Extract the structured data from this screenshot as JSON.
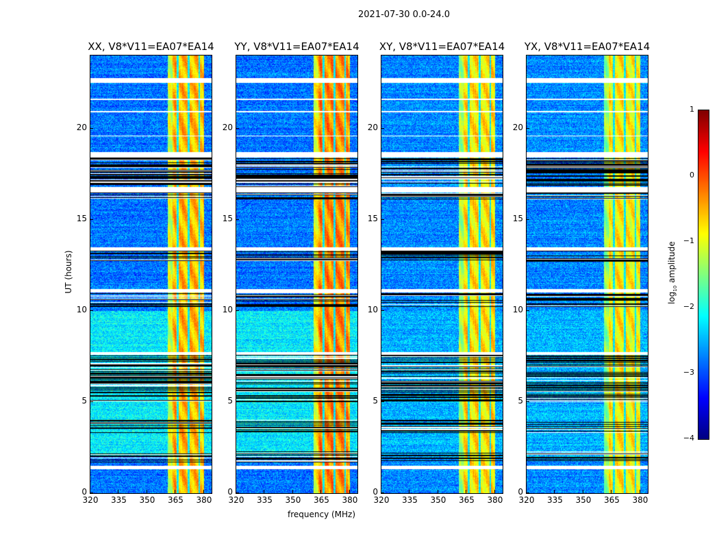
{
  "suptitle": "2021-07-30 0.0-24.0",
  "chart_data": {
    "type": "heatmap",
    "xlabel": "frequency (MHz)",
    "ylabel": "UT (hours)",
    "xlim": [
      320,
      384
    ],
    "ylim": [
      0,
      24
    ],
    "xticks": [
      "320",
      "335",
      "350",
      "365",
      "380"
    ],
    "xtick_values": [
      320,
      335,
      350,
      365,
      380
    ],
    "yticks": [
      "0",
      "5",
      "10",
      "15",
      "20"
    ],
    "ytick_values": [
      0,
      5,
      10,
      15,
      20
    ],
    "colorbar": {
      "label_prefix": "log",
      "label_sub": "10",
      "label_suffix": " amplitude",
      "range": [
        -4,
        1
      ],
      "ticks": [
        "1",
        "0",
        "−1",
        "−2",
        "−3",
        "−4"
      ],
      "tick_values": [
        1,
        0,
        -1,
        -2,
        -3,
        -4
      ],
      "colormap": "jet"
    },
    "rfi_band_mhz": [
      361,
      380
    ],
    "band_gaps_mhz": [
      366,
      372,
      377.5
    ],
    "flagged_blocks_hours": [
      [
        22.5,
        22.75
      ],
      [
        21.55,
        21.65
      ],
      [
        20.9,
        20.95
      ],
      [
        19.55,
        19.62
      ],
      [
        18.4,
        18.72
      ],
      [
        16.5,
        16.8
      ],
      [
        13.3,
        13.5
      ],
      [
        11.0,
        11.2
      ],
      [
        7.6,
        7.75
      ],
      [
        1.3,
        1.5
      ]
    ],
    "striped_ranges_hours": [
      [
        16.1,
        18.4
      ],
      [
        12.7,
        13.3
      ],
      [
        10.2,
        11.0
      ],
      [
        5.0,
        7.6
      ],
      [
        3.3,
        4.0
      ],
      [
        1.7,
        2.3
      ]
    ],
    "panels": [
      {
        "title": "XX, V8*V11=EA07*EA14",
        "band_level": -0.7,
        "background_level": -2.8,
        "quiet_background_level": -2.2
      },
      {
        "title": "YY, V8*V11=EA07*EA14",
        "band_level": -0.5,
        "background_level": -2.8,
        "quiet_background_level": -2.2
      },
      {
        "title": "XY, V8*V11=EA07*EA14",
        "band_level": -0.9,
        "background_level": -2.7,
        "quiet_background_level": -2.5
      },
      {
        "title": "YX, V8*V11=EA07*EA14",
        "band_level": -1.0,
        "background_level": -2.7,
        "quiet_background_level": -2.5
      }
    ]
  }
}
